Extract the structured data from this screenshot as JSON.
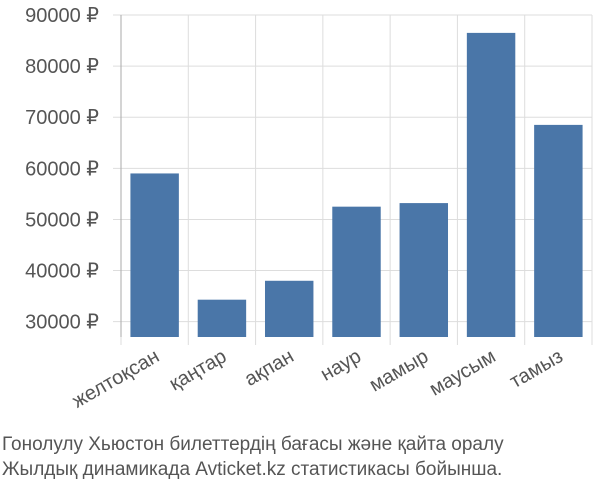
{
  "chart_data": {
    "type": "bar",
    "categories": [
      "желтоқсан",
      "қаңтар",
      "ақпан",
      "наур",
      "мамыр",
      "маусым",
      "тамыз"
    ],
    "values": [
      59000,
      34300,
      38000,
      52500,
      53200,
      86500,
      68500
    ],
    "ylim": [
      27000,
      90000
    ],
    "yticks": [
      30000,
      40000,
      50000,
      60000,
      70000,
      80000,
      90000
    ],
    "ytick_labels": [
      "30000 ₽",
      "40000 ₽",
      "50000 ₽",
      "60000 ₽",
      "70000 ₽",
      "80000 ₽",
      "90000 ₽"
    ],
    "grid": true,
    "bar_color": "#4a76a8",
    "grid_color": "#dddddd",
    "axis_color": "#aaaaaa"
  },
  "caption": {
    "line1": "Гонолулу Хьюстон билеттердің бағасы және қайта оралу",
    "line2": "Жылдық динамикада Avticket.kz статистикасы бойынша."
  }
}
